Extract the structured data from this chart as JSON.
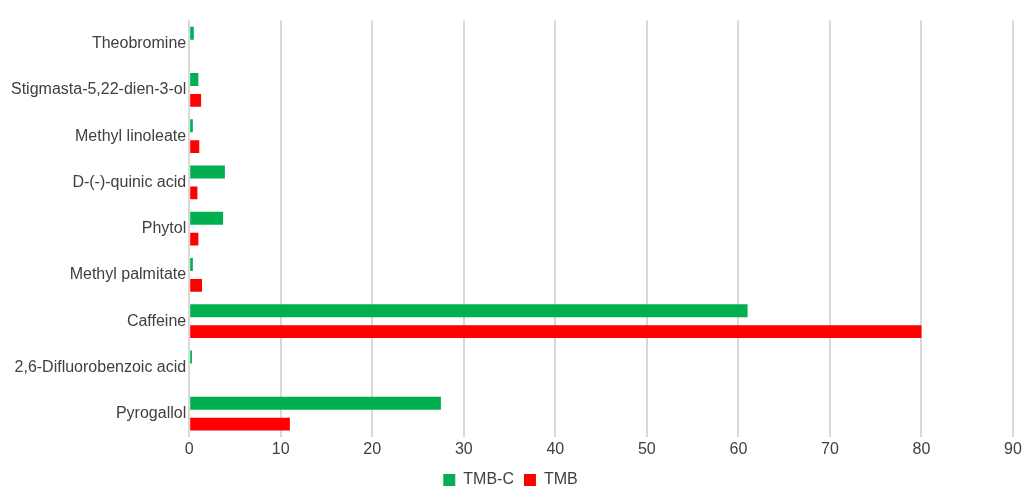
{
  "chart_data": {
    "type": "bar",
    "orientation": "horizontal",
    "categories": [
      "Theobromine",
      "Stigmasta-5,22-dien-3-ol",
      "Methyl linoleate",
      "D-(-)-quinic acid",
      "Phytol",
      "Methyl palmitate",
      "Caffeine",
      "2,6-Difluorobenzoic acid",
      "Pyrogallol"
    ],
    "series": [
      {
        "name": "TMB-C",
        "color": "#00b050",
        "values": [
          0.5,
          1.0,
          0.4,
          3.9,
          3.7,
          0.4,
          61,
          0.3,
          27.5
        ]
      },
      {
        "name": "TMB",
        "color": "#ff0000",
        "values": [
          null,
          1.3,
          1.1,
          0.9,
          1.0,
          1.4,
          80,
          null,
          11.0
        ]
      }
    ],
    "xlim": [
      0,
      90
    ],
    "xticks": [
      0,
      10,
      20,
      30,
      40,
      50,
      60,
      70,
      80,
      90
    ],
    "grid": "x",
    "legend": "bottom"
  }
}
